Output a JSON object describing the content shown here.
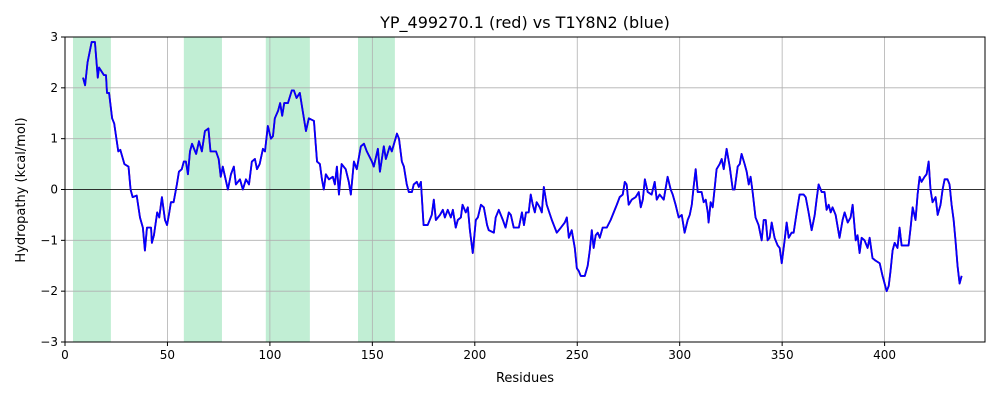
{
  "chart_data": {
    "type": "line",
    "title": "YP_499270.1 (red) vs T1Y8N2 (blue)",
    "x_label": "Residues",
    "y_label": "Hydropathy (kcal/mol)",
    "xlim": [
      0,
      449
    ],
    "xticks": [
      0,
      50,
      100,
      150,
      200,
      250,
      300,
      350,
      400
    ],
    "ylim": [
      -3,
      3
    ],
    "yticks": [
      {
        "value": -3,
        "label": "−3"
      },
      {
        "value": -2,
        "label": "−2"
      },
      {
        "value": -1,
        "label": "−1"
      },
      0,
      1,
      2,
      3
    ],
    "grid": true,
    "hline": 0,
    "spans": [
      [
        3.9,
        22.4
      ],
      [
        58,
        76.6
      ],
      [
        98,
        119.5
      ],
      [
        143,
        161
      ]
    ],
    "span_color": "#c1eed4",
    "x": [
      8.8,
      9.8,
      11,
      13,
      14.6,
      16,
      16.6,
      19,
      20,
      20.5,
      21.5,
      23,
      24,
      26,
      27,
      29,
      31,
      32,
      33,
      35,
      36.6,
      38,
      39,
      40,
      42,
      42.4,
      43.4,
      45,
      46,
      47.3,
      48.8,
      49.8,
      50.7,
      51.7,
      53,
      54.6,
      55.6,
      57,
      58,
      59,
      60,
      61,
      62,
      64,
      65.4,
      66.8,
      68.3,
      70,
      71,
      73.7,
      75,
      76,
      77,
      79.5,
      81,
      82.4,
      83.4,
      85.4,
      86.8,
      88.3,
      89.8,
      91.2,
      92.7,
      93.7,
      95,
      96.6,
      97.6,
      99,
      100.5,
      101.5,
      102.4,
      104,
      105,
      106,
      107,
      108.8,
      110.7,
      111.7,
      113,
      114.6,
      116,
      117.6,
      119,
      121.5,
      123,
      124.4,
      125.4,
      126.3,
      127.3,
      128.8,
      130.7,
      131.7,
      132.7,
      133.7,
      135,
      137,
      138.5,
      139.5,
      141,
      142.4,
      144.4,
      145.9,
      147.3,
      149.8,
      150.7,
      152.7,
      153.7,
      155.6,
      156.6,
      158.5,
      159.5,
      162,
      163,
      164.4,
      165.4,
      166.8,
      167.8,
      169.3,
      170.2,
      171.7,
      172.7,
      173.7,
      175,
      177,
      179,
      180,
      181,
      183,
      184.4,
      185.4,
      186.8,
      188.3,
      189.3,
      190.7,
      191.7,
      193.2,
      194,
      195.6,
      196.6,
      197.6,
      199,
      200.5,
      201.5,
      203,
      204.4,
      206,
      206.8,
      209.3,
      210.2,
      211.7,
      213.7,
      215,
      216.6,
      217.6,
      219,
      221.5,
      223,
      224,
      225,
      226.3,
      227.3,
      228.3,
      229.3,
      230.2,
      231.7,
      232.7,
      233.7,
      235.1,
      237.6,
      240,
      242,
      243.9,
      244.9,
      245.9,
      247.3,
      248.8,
      249.8,
      250.7,
      251.7,
      253.7,
      255.1,
      256.1,
      257.1,
      258,
      259,
      260,
      261,
      262.4,
      264.4,
      266.3,
      267.8,
      269.3,
      270.7,
      272.2,
      273.2,
      274.1,
      275.1,
      276.6,
      278.5,
      280,
      281,
      282,
      283,
      284.4,
      286.3,
      287.8,
      288.8,
      290.2,
      292.2,
      294.1,
      295.6,
      296.6,
      298,
      299.5,
      301,
      302.4,
      303.9,
      304.9,
      305.9,
      306.8,
      307.8,
      308.8,
      310.7,
      311.7,
      312.7,
      313.7,
      314.1,
      315.1,
      316.1,
      317,
      318,
      319.5,
      320.5,
      321.5,
      322.9,
      324.4,
      325.9,
      326.8,
      328.3,
      329.3,
      330.2,
      331.7,
      332.7,
      333.7,
      334.6,
      335.6,
      337,
      338.5,
      340,
      341,
      342,
      342.9,
      343.9,
      344.9,
      346.3,
      347.8,
      348.8,
      349.8,
      351.2,
      352.2,
      353.2,
      354.6,
      355.6,
      357.1,
      358.5,
      360.5,
      361.5,
      362.9,
      364.4,
      365.9,
      366.8,
      367.8,
      369.3,
      370.7,
      371.7,
      372.7,
      373.7,
      374.6,
      376.1,
      378,
      379.5,
      380.5,
      382,
      383.4,
      384.4,
      385.9,
      386.8,
      387.8,
      388.8,
      390.2,
      391.7,
      392.7,
      394.1,
      395.6,
      397.6,
      399,
      401,
      402,
      402.9,
      403.9,
      404.9,
      406.3,
      407.3,
      408.3,
      410.7,
      411.7,
      412.7,
      413.7,
      415.1,
      416.1,
      417.1,
      418,
      419.5,
      420.5,
      421.5,
      422.4,
      423.4,
      424.9,
      425.9,
      427.3,
      428.3,
      429.3,
      430.7,
      431.7,
      432.7,
      433.7,
      434.6,
      435.6,
      436.6,
      437.6
    ],
    "series": [
      {
        "color": "#ff0000",
        "values": [
          2.2,
          2.05,
          2.5,
          2.9,
          2.9,
          2.2,
          2.4,
          2.25,
          2.25,
          1.9,
          1.9,
          1.4,
          1.3,
          0.75,
          0.78,
          0.5,
          0.45,
          0,
          -0.15,
          -0.12,
          -0.55,
          -0.75,
          -1.2,
          -0.75,
          -0.75,
          -1.05,
          -0.9,
          -0.45,
          -0.55,
          -0.15,
          -0.6,
          -0.7,
          -0.5,
          -0.25,
          -0.25,
          0.1,
          0.35,
          0.4,
          0.55,
          0.55,
          0.3,
          0.75,
          0.9,
          0.7,
          0.95,
          0.75,
          1.15,
          1.2,
          0.75,
          0.75,
          0.6,
          0.25,
          0.45,
          0,
          0.3,
          0.45,
          0.1,
          0.2,
          0,
          0.2,
          0.1,
          0.55,
          0.6,
          0.4,
          0.5,
          0.8,
          0.75,
          1.25,
          1,
          1.05,
          1.4,
          1.55,
          1.7,
          1.45,
          1.7,
          1.7,
          1.95,
          1.95,
          1.8,
          1.9,
          1.55,
          1.15,
          1.4,
          1.35,
          0.55,
          0.5,
          0.2,
          0,
          0.3,
          0.2,
          0.25,
          0.1,
          0.45,
          -0.1,
          0.5,
          0.4,
          0.15,
          -0.1,
          0.55,
          0.4,
          0.85,
          0.9,
          0.75,
          0.55,
          0.45,
          0.8,
          0.35,
          0.85,
          0.6,
          0.85,
          0.75,
          1.1,
          1,
          0.55,
          0.45,
          0.1,
          -0.05,
          -0.05,
          0.1,
          0.15,
          0.05,
          0.15,
          -0.7,
          -0.7,
          -0.5,
          -0.2,
          -0.6,
          -0.5,
          -0.4,
          -0.55,
          -0.4,
          -0.55,
          -0.4,
          -0.75,
          -0.6,
          -0.55,
          -0.3,
          -0.45,
          -0.35,
          -0.8,
          -1.25,
          -0.6,
          -0.55,
          -0.3,
          -0.35,
          -0.7,
          -0.8,
          -0.85,
          -0.55,
          -0.4,
          -0.6,
          -0.75,
          -0.45,
          -0.5,
          -0.75,
          -0.75,
          -0.45,
          -0.7,
          -0.45,
          -0.45,
          -0.1,
          -0.3,
          -0.45,
          -0.25,
          -0.35,
          -0.45,
          0.05,
          -0.3,
          -0.6,
          -0.85,
          -0.75,
          -0.65,
          -0.55,
          -0.95,
          -0.8,
          -1.15,
          -1.55,
          -1.6,
          -1.7,
          -1.7,
          -1.5,
          -1.2,
          -0.8,
          -1.15,
          -0.9,
          -0.85,
          -0.95,
          -0.75,
          -0.75,
          -0.6,
          -0.45,
          -0.3,
          -0.15,
          -0.1,
          0.15,
          0.1,
          -0.3,
          -0.2,
          -0.15,
          -0.05,
          -0.35,
          -0.2,
          0.2,
          -0.05,
          -0.1,
          0.15,
          -0.2,
          -0.1,
          -0.2,
          0.25,
          0,
          -0.1,
          -0.3,
          -0.55,
          -0.5,
          -0.85,
          -0.6,
          -0.5,
          -0.3,
          0.05,
          0.4,
          -0.05,
          -0.05,
          -0.25,
          -0.2,
          -0.45,
          -0.65,
          -0.25,
          -0.35,
          0,
          0.4,
          0.5,
          0.6,
          0.4,
          0.8,
          0.45,
          0,
          0,
          0.45,
          0.5,
          0.7,
          0.5,
          0.35,
          0.1,
          0.25,
          -0.05,
          -0.55,
          -0.7,
          -1,
          -0.6,
          -0.6,
          -1,
          -0.95,
          -0.65,
          -0.95,
          -1.1,
          -1.15,
          -1.45,
          -1,
          -0.65,
          -0.95,
          -0.85,
          -0.85,
          -0.45,
          -0.1,
          -0.1,
          -0.15,
          -0.45,
          -0.8,
          -0.5,
          -0.2,
          0.1,
          -0.05,
          -0.05,
          -0.4,
          -0.3,
          -0.45,
          -0.35,
          -0.5,
          -0.95,
          -0.6,
          -0.45,
          -0.65,
          -0.55,
          -0.3,
          -1,
          -0.9,
          -1.25,
          -0.95,
          -1,
          -1.15,
          -0.95,
          -1.35,
          -1.4,
          -1.45,
          -1.7,
          -2,
          -1.9,
          -1.6,
          -1.2,
          -1.05,
          -1.15,
          -0.75,
          -1.1,
          -1.1,
          -1.1,
          -0.75,
          -0.35,
          -0.6,
          -0.1,
          0.25,
          0.15,
          0.25,
          0.3,
          0.55,
          0,
          -0.25,
          -0.15,
          -0.5,
          -0.3,
          0,
          0.2,
          0.2,
          0.1,
          -0.3,
          -0.6,
          -1,
          -1.5,
          -1.85,
          -1.7
        ]
      },
      {
        "color": "#0000ff",
        "values": [
          2.2,
          2.05,
          2.5,
          2.9,
          2.9,
          2.2,
          2.4,
          2.25,
          2.25,
          1.9,
          1.9,
          1.4,
          1.3,
          0.75,
          0.78,
          0.5,
          0.45,
          0,
          -0.15,
          -0.12,
          -0.55,
          -0.75,
          -1.2,
          -0.75,
          -0.75,
          -1.05,
          -0.9,
          -0.45,
          -0.55,
          -0.15,
          -0.6,
          -0.7,
          -0.5,
          -0.25,
          -0.25,
          0.1,
          0.35,
          0.4,
          0.55,
          0.55,
          0.3,
          0.75,
          0.9,
          0.7,
          0.95,
          0.75,
          1.15,
          1.2,
          0.75,
          0.75,
          0.6,
          0.25,
          0.45,
          0,
          0.3,
          0.45,
          0.1,
          0.2,
          0,
          0.2,
          0.1,
          0.55,
          0.6,
          0.4,
          0.5,
          0.8,
          0.75,
          1.25,
          1,
          1.05,
          1.4,
          1.55,
          1.7,
          1.45,
          1.7,
          1.7,
          1.95,
          1.95,
          1.8,
          1.9,
          1.55,
          1.15,
          1.4,
          1.35,
          0.55,
          0.5,
          0.2,
          0,
          0.3,
          0.2,
          0.25,
          0.1,
          0.45,
          -0.1,
          0.5,
          0.4,
          0.15,
          -0.1,
          0.55,
          0.4,
          0.85,
          0.9,
          0.75,
          0.55,
          0.45,
          0.8,
          0.35,
          0.85,
          0.6,
          0.85,
          0.75,
          1.1,
          1,
          0.55,
          0.45,
          0.1,
          -0.05,
          -0.05,
          0.1,
          0.15,
          0.05,
          0.15,
          -0.7,
          -0.7,
          -0.5,
          -0.2,
          -0.6,
          -0.5,
          -0.4,
          -0.55,
          -0.4,
          -0.55,
          -0.4,
          -0.75,
          -0.6,
          -0.55,
          -0.3,
          -0.45,
          -0.35,
          -0.8,
          -1.25,
          -0.6,
          -0.55,
          -0.3,
          -0.35,
          -0.7,
          -0.8,
          -0.85,
          -0.55,
          -0.4,
          -0.6,
          -0.75,
          -0.45,
          -0.5,
          -0.75,
          -0.75,
          -0.45,
          -0.7,
          -0.45,
          -0.45,
          -0.1,
          -0.3,
          -0.45,
          -0.25,
          -0.35,
          -0.45,
          0.05,
          -0.3,
          -0.6,
          -0.85,
          -0.75,
          -0.65,
          -0.55,
          -0.95,
          -0.8,
          -1.15,
          -1.55,
          -1.6,
          -1.7,
          -1.7,
          -1.5,
          -1.2,
          -0.8,
          -1.15,
          -0.9,
          -0.85,
          -0.95,
          -0.75,
          -0.75,
          -0.6,
          -0.45,
          -0.3,
          -0.15,
          -0.1,
          0.15,
          0.1,
          -0.3,
          -0.2,
          -0.15,
          -0.05,
          -0.35,
          -0.2,
          0.2,
          -0.05,
          -0.1,
          0.15,
          -0.2,
          -0.1,
          -0.2,
          0.25,
          0,
          -0.1,
          -0.3,
          -0.55,
          -0.5,
          -0.85,
          -0.6,
          -0.5,
          -0.3,
          0.05,
          0.4,
          -0.05,
          -0.05,
          -0.25,
          -0.2,
          -0.45,
          -0.65,
          -0.25,
          -0.35,
          0,
          0.4,
          0.5,
          0.6,
          0.4,
          0.8,
          0.45,
          0,
          0,
          0.45,
          0.5,
          0.7,
          0.5,
          0.35,
          0.1,
          0.25,
          -0.05,
          -0.55,
          -0.7,
          -1,
          -0.6,
          -0.6,
          -1,
          -0.95,
          -0.65,
          -0.95,
          -1.1,
          -1.15,
          -1.45,
          -1,
          -0.65,
          -0.95,
          -0.85,
          -0.85,
          -0.45,
          -0.1,
          -0.1,
          -0.15,
          -0.45,
          -0.8,
          -0.5,
          -0.2,
          0.1,
          -0.05,
          -0.05,
          -0.4,
          -0.3,
          -0.45,
          -0.35,
          -0.5,
          -0.95,
          -0.6,
          -0.45,
          -0.65,
          -0.55,
          -0.3,
          -1,
          -0.9,
          -1.25,
          -0.95,
          -1,
          -1.15,
          -0.95,
          -1.35,
          -1.4,
          -1.45,
          -1.7,
          -2,
          -1.9,
          -1.6,
          -1.2,
          -1.05,
          -1.15,
          -0.75,
          -1.1,
          -1.1,
          -1.1,
          -0.75,
          -0.35,
          -0.6,
          -0.1,
          0.25,
          0.15,
          0.25,
          0.3,
          0.55,
          0,
          -0.25,
          -0.15,
          -0.5,
          -0.3,
          0,
          0.2,
          0.2,
          0.1,
          -0.3,
          -0.6,
          -1,
          -1.5,
          -1.85,
          -1.7
        ]
      }
    ]
  }
}
